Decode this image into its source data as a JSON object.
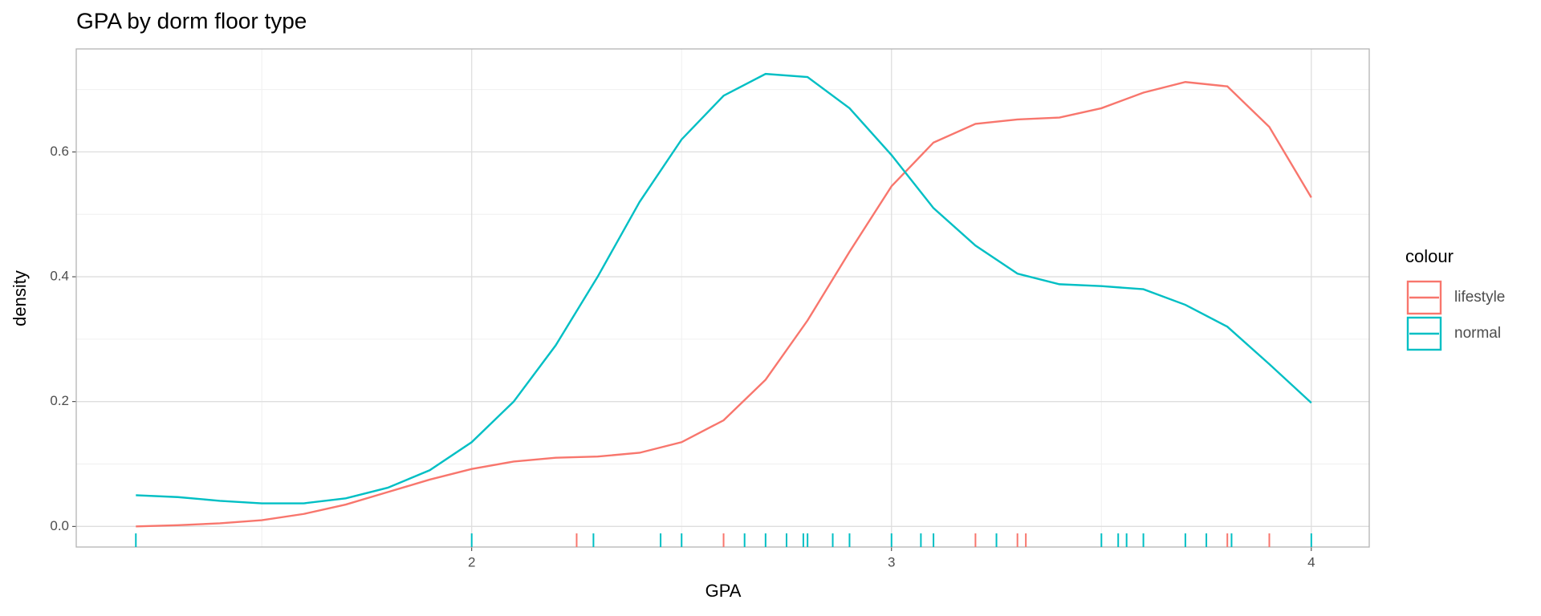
{
  "chart_data": {
    "type": "density",
    "title": "GPA by dorm floor type",
    "x_label": "GPA",
    "y_label": "density",
    "legend_title": "colour",
    "legend_position": "right",
    "xlim": [
      1.058,
      4.138
    ],
    "ylim": [
      -0.033,
      0.765
    ],
    "xticks": [
      2,
      3,
      4
    ],
    "yticks": [
      {
        "value": 0,
        "label": "0.0"
      },
      0.2,
      0.4,
      0.6
    ],
    "grid": true,
    "series": [
      {
        "name": "lifestyle",
        "color": "#f8766d",
        "x": [
          1.2,
          1.3,
          1.4,
          1.5,
          1.6,
          1.7,
          1.8,
          1.9,
          2.0,
          2.1,
          2.2,
          2.3,
          2.4,
          2.5,
          2.6,
          2.7,
          2.8,
          2.9,
          3.0,
          3.1,
          3.2,
          3.3,
          3.4,
          3.5,
          3.6,
          3.7,
          3.8,
          3.9,
          4.0
        ],
        "values": [
          0.0,
          0.002,
          0.005,
          0.01,
          0.02,
          0.035,
          0.055,
          0.075,
          0.092,
          0.104,
          0.11,
          0.112,
          0.118,
          0.135,
          0.17,
          0.235,
          0.33,
          0.44,
          0.545,
          0.615,
          0.645,
          0.652,
          0.655,
          0.67,
          0.695,
          0.712,
          0.705,
          0.64,
          0.527
        ],
        "rug": [
          2.25,
          2.6,
          3.2,
          3.3,
          3.32,
          3.8,
          3.9
        ]
      },
      {
        "name": "normal",
        "color": "#00bfc4",
        "x": [
          1.2,
          1.3,
          1.4,
          1.5,
          1.6,
          1.7,
          1.8,
          1.9,
          2.0,
          2.1,
          2.2,
          2.3,
          2.4,
          2.5,
          2.6,
          2.7,
          2.8,
          2.9,
          3.0,
          3.1,
          3.2,
          3.3,
          3.4,
          3.5,
          3.6,
          3.7,
          3.8,
          3.9,
          4.0
        ],
        "values": [
          0.05,
          0.047,
          0.041,
          0.037,
          0.037,
          0.045,
          0.062,
          0.09,
          0.135,
          0.2,
          0.29,
          0.4,
          0.52,
          0.62,
          0.69,
          0.725,
          0.72,
          0.67,
          0.595,
          0.51,
          0.45,
          0.405,
          0.388,
          0.385,
          0.38,
          0.355,
          0.32,
          0.26,
          0.198
        ],
        "rug": [
          1.2,
          2.0,
          2.29,
          2.45,
          2.5,
          2.65,
          2.7,
          2.75,
          2.79,
          2.8,
          2.86,
          2.9,
          3.0,
          3.07,
          3.1,
          3.25,
          3.5,
          3.54,
          3.56,
          3.6,
          3.7,
          3.75,
          3.81,
          4.0
        ]
      }
    ]
  }
}
